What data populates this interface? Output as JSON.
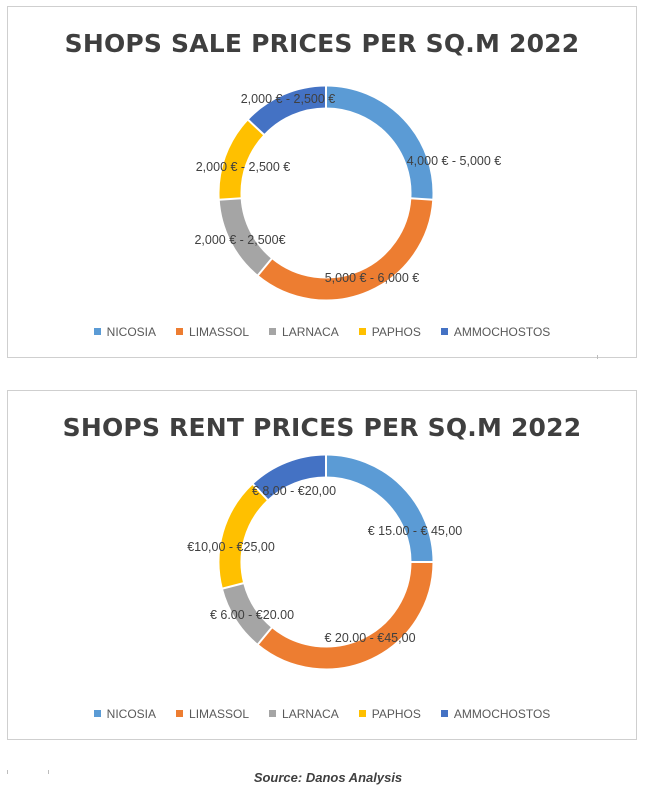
{
  "chart_data": [
    {
      "type": "donut",
      "title": "SHOPS SALE PRICES PER SQ.M 2022",
      "legend_position": "bottom",
      "categories": [
        "NICOSIA",
        "LIMASSOL",
        "LARNACA",
        "PAPHOS",
        "AMMOCHOSTOS"
      ],
      "colors": [
        "#5B9BD5",
        "#ED7D31",
        "#A5A5A5",
        "#FFC000",
        "#4472C4"
      ],
      "values": [
        26,
        35,
        13,
        13,
        13
      ],
      "data_labels": [
        "4,000 € - 5,000 €",
        "5,000 € - 6,000 €",
        "2,000 € - 2,500€",
        "2,000 € - 2,500 €",
        "2,000 € - 2,500 €"
      ]
    },
    {
      "type": "donut",
      "title": "SHOPS RENT PRICES PER SQ.M 2022",
      "legend_position": "bottom",
      "categories": [
        "NICOSIA",
        "LIMASSOL",
        "LARNACA",
        "PAPHOS",
        "AMMOCHOSTOS"
      ],
      "colors": [
        "#5B9BD5",
        "#ED7D31",
        "#A5A5A5",
        "#FFC000",
        "#4472C4"
      ],
      "values": [
        25,
        36,
        10,
        17,
        12
      ],
      "data_labels": [
        "€ 15.00 - € 45,00",
        "€ 20.00 - €45,00",
        "€ 6.00 - €20.00",
        "€10,00 - €25,00",
        "€ 8.00 - €20,00"
      ]
    }
  ],
  "source": "Source: Danos Analysis"
}
